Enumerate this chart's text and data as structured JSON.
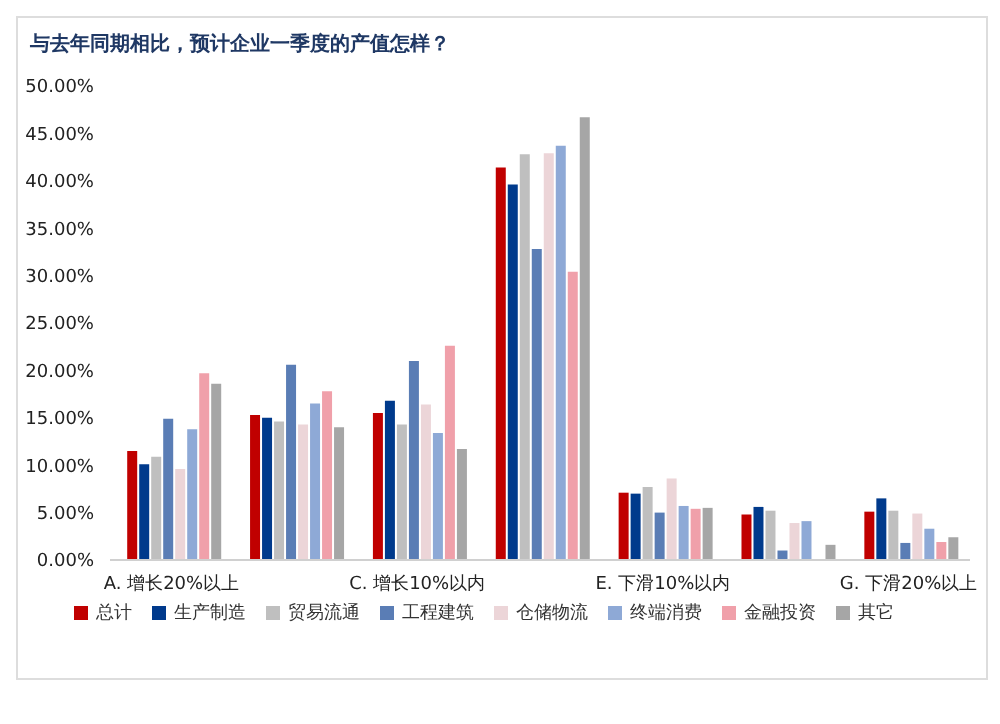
{
  "chart_data": {
    "type": "bar",
    "title": "与去年同期相比，预计企业一季度的产值怎样？",
    "categories": [
      "A. 增长20%以上",
      null,
      "C. 增长10%以内",
      null,
      "E. 下滑10%以内",
      null,
      "G. 下滑20%以上"
    ],
    "series": [
      {
        "name": "总计",
        "color": "#c00000",
        "values": [
          11.5,
          15.3,
          15.5,
          41.4,
          7.1,
          4.8,
          5.1
        ]
      },
      {
        "name": "生产制造",
        "color": "#003a8c",
        "values": [
          10.1,
          15.0,
          16.8,
          39.6,
          7.0,
          5.6,
          6.5
        ]
      },
      {
        "name": "贸易流通",
        "color": "#bfbfbf",
        "values": [
          10.9,
          14.6,
          14.3,
          42.8,
          7.7,
          5.2,
          5.2
        ]
      },
      {
        "name": "工程建筑",
        "color": "#5a7db5",
        "values": [
          14.9,
          20.6,
          21.0,
          32.8,
          5.0,
          1.0,
          1.8
        ]
      },
      {
        "name": "仓储物流",
        "color": "#ecd5d8",
        "values": [
          9.6,
          14.3,
          16.4,
          42.9,
          8.6,
          3.9,
          4.9
        ]
      },
      {
        "name": "终端消费",
        "color": "#8ea9d6",
        "values": [
          13.8,
          16.5,
          13.4,
          43.7,
          5.7,
          4.1,
          3.3
        ]
      },
      {
        "name": "金融投资",
        "color": "#f0a0aa",
        "values": [
          19.7,
          17.8,
          22.6,
          30.4,
          5.4,
          null,
          1.9
        ]
      },
      {
        "name": "其它",
        "color": "#a6a6a6",
        "values": [
          18.6,
          14.0,
          11.7,
          46.7,
          5.5,
          1.6,
          2.4
        ]
      }
    ],
    "ylim": [
      0,
      50
    ],
    "yticks": [
      {
        "value": 0,
        "label": "0.00%"
      },
      {
        "value": 5,
        "label": "5.00%"
      },
      {
        "value": 10,
        "label": "10.00%"
      },
      {
        "value": 15,
        "label": "15.00%"
      },
      {
        "value": 20,
        "label": "20.00%"
      },
      {
        "value": 25,
        "label": "25.00%"
      },
      {
        "value": 30,
        "label": "30.00%"
      },
      {
        "value": 35,
        "label": "35.00%"
      },
      {
        "value": 40,
        "label": "40.00%"
      },
      {
        "value": 45,
        "label": "45.00%"
      },
      {
        "value": 50,
        "label": "50.00%"
      }
    ],
    "grid": false,
    "legend": "bottom"
  }
}
